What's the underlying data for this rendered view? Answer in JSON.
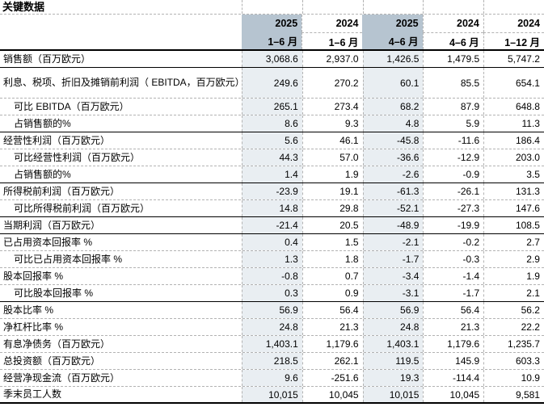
{
  "title": "关键数据",
  "colors": {
    "header_highlight": "#b6c4d0",
    "column_highlight": "#e9eef2",
    "grid_line": "#b3b3b3",
    "section_line": "#000000",
    "text": "#000000",
    "background": "#ffffff"
  },
  "table": {
    "columns": [
      {
        "year": "2025",
        "period": "1–6 月",
        "highlight": true
      },
      {
        "year": "2024",
        "period": "1–6 月",
        "highlight": false
      },
      {
        "year": "2025",
        "period": "4–6 月",
        "highlight": true
      },
      {
        "year": "2024",
        "period": "4–6 月",
        "highlight": false
      },
      {
        "year": "2024",
        "period": "1–12 月",
        "highlight": false
      }
    ],
    "rows": [
      {
        "label": "销售额（百万欧元）",
        "indent": false,
        "tall": false,
        "border": "solid",
        "values": [
          "3,068.6",
          "2,937.0",
          "1,426.5",
          "1,479.5",
          "5,747.2"
        ]
      },
      {
        "label": "利息、税项、折旧及摊销前利润（ EBITDA，百万欧元）",
        "indent": false,
        "tall": true,
        "border": "dashed",
        "values": [
          "249.6",
          "270.2",
          "60.1",
          "85.5",
          "654.1"
        ]
      },
      {
        "label": "可比 EBITDA（百万欧元）",
        "indent": true,
        "tall": false,
        "border": "dashed",
        "values": [
          "265.1",
          "273.4",
          "68.2",
          "87.9",
          "648.8"
        ]
      },
      {
        "label": "占销售额的%",
        "indent": true,
        "tall": false,
        "border": "solid",
        "values": [
          "8.6",
          "9.3",
          "4.8",
          "5.9",
          "11.3"
        ]
      },
      {
        "label": "经营性利润（百万欧元）",
        "indent": false,
        "tall": false,
        "border": "dashed",
        "values": [
          "5.6",
          "46.1",
          "-45.8",
          "-11.6",
          "186.4"
        ]
      },
      {
        "label": "可比经营性利润（百万欧元）",
        "indent": true,
        "tall": false,
        "border": "dashed",
        "values": [
          "44.3",
          "57.0",
          "-36.6",
          "-12.9",
          "203.0"
        ]
      },
      {
        "label": "占销售额的%",
        "indent": true,
        "tall": false,
        "border": "solid",
        "values": [
          "1.4",
          "1.9",
          "-2.6",
          "-0.9",
          "3.5"
        ]
      },
      {
        "label": "所得税前利润（百万欧元）",
        "indent": false,
        "tall": false,
        "border": "dashed",
        "values": [
          "-23.9",
          "19.1",
          "-61.3",
          "-26.1",
          "131.3"
        ]
      },
      {
        "label": "可比所得税前利润（百万欧元）",
        "indent": true,
        "tall": false,
        "border": "solid",
        "values": [
          "14.8",
          "29.8",
          "-52.1",
          "-27.3",
          "147.6"
        ]
      },
      {
        "label": "当期利润（百万欧元）",
        "indent": false,
        "tall": false,
        "border": "solid",
        "values": [
          "-21.4",
          "20.5",
          "-48.9",
          "-19.9",
          "108.5"
        ]
      },
      {
        "label": "已占用资本回报率 %",
        "indent": false,
        "tall": false,
        "border": "dashed",
        "values": [
          "0.4",
          "1.5",
          "-2.1",
          "-0.2",
          "2.7"
        ]
      },
      {
        "label": "可比已占用资本回报率 %",
        "indent": true,
        "tall": false,
        "border": "dashed",
        "values": [
          "1.3",
          "1.8",
          "-1.7",
          "-0.3",
          "2.9"
        ]
      },
      {
        "label": "股本回报率 %",
        "indent": false,
        "tall": false,
        "border": "dashed",
        "values": [
          "-0.8",
          "0.7",
          "-3.4",
          "-1.4",
          "1.9"
        ]
      },
      {
        "label": "可比股本回报率 %",
        "indent": true,
        "tall": false,
        "border": "solid",
        "values": [
          "0.3",
          "0.9",
          "-3.1",
          "-1.7",
          "2.1"
        ]
      },
      {
        "label": "股本比率 %",
        "indent": false,
        "tall": false,
        "border": "dashed",
        "values": [
          "56.9",
          "56.4",
          "56.9",
          "56.4",
          "56.2"
        ]
      },
      {
        "label": "净杠杆比率 %",
        "indent": false,
        "tall": false,
        "border": "dashed",
        "values": [
          "24.8",
          "21.3",
          "24.8",
          "21.3",
          "22.2"
        ]
      },
      {
        "label": "有息净债务（百万欧元）",
        "indent": false,
        "tall": false,
        "border": "dashed",
        "values": [
          "1,403.1",
          "1,179.6",
          "1,403.1",
          "1,179.6",
          "1,235.7"
        ]
      },
      {
        "label": "总投资额（百万欧元）",
        "indent": false,
        "tall": false,
        "border": "dashed",
        "values": [
          "218.5",
          "262.1",
          "119.5",
          "145.9",
          "603.3"
        ]
      },
      {
        "label": "经营净现金流（百万欧元）",
        "indent": false,
        "tall": false,
        "border": "dashed",
        "values": [
          "9.6",
          "-251.6",
          "19.3",
          "-114.4",
          "10.9"
        ]
      },
      {
        "label": "季末员工人数",
        "indent": false,
        "tall": false,
        "border": "thick",
        "values": [
          "10,015",
          "10,045",
          "10,015",
          "10,045",
          "9,581"
        ]
      }
    ]
  }
}
